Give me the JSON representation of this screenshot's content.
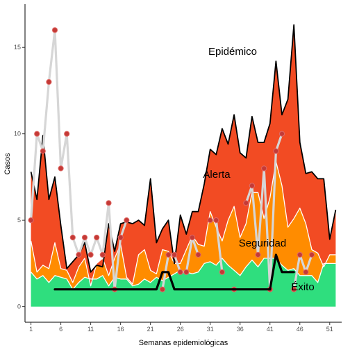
{
  "chart_data": {
    "type": "area",
    "title": "",
    "xlabel": "Semanas epidemiológicas",
    "ylabel": "Casos",
    "xlim": [
      0,
      53
    ],
    "ylim": [
      -0.9,
      17.5
    ],
    "x_ticks": [
      1,
      6,
      11,
      16,
      21,
      26,
      31,
      36,
      41,
      46,
      51
    ],
    "y_ticks": [
      0,
      5,
      10,
      15
    ],
    "grid": false,
    "legend": "none",
    "colors": {
      "exito": "#2fde7e",
      "seguridad": "#ff8c00",
      "alerta": "#f24b23",
      "epidemico": "#ffffff",
      "current_line": "#000000",
      "historic_line": "#d6d6d6",
      "historic_points": "#c43a36",
      "band_border": "#ffffff"
    },
    "weeks": [
      1,
      2,
      3,
      4,
      5,
      6,
      7,
      8,
      9,
      10,
      11,
      12,
      13,
      14,
      15,
      16,
      17,
      18,
      19,
      20,
      21,
      22,
      23,
      24,
      25,
      26,
      27,
      28,
      29,
      30,
      31,
      32,
      33,
      34,
      35,
      36,
      37,
      38,
      39,
      40,
      41,
      42,
      43,
      44,
      45,
      46,
      47,
      48,
      49,
      50,
      51,
      52
    ],
    "zones": [
      {
        "name": "Éxito",
        "upper": [
          2,
          1.6,
          1.8,
          1.4,
          1.8,
          1.7,
          1.6,
          1,
          1.4,
          1.7,
          1.6,
          1.6,
          1.8,
          1.2,
          1.7,
          1.6,
          1.6,
          1.2,
          1.3,
          1.6,
          1.4,
          1.7,
          1.5,
          1.7,
          1.9,
          2.1,
          2,
          1.9,
          2,
          2.5,
          2.6,
          2.4,
          2.8,
          2.4,
          2.1,
          1.8,
          2.3,
          2.7,
          2.3,
          2.8,
          2.8,
          2.8,
          2.4,
          2.1,
          2.2,
          1.8,
          1.8,
          1.8,
          1.4,
          2.5,
          2.5,
          2.5
        ]
      },
      {
        "name": "Seguridad",
        "upper": [
          3.8,
          2,
          2.4,
          2.2,
          3.7,
          2.2,
          2.1,
          1.4,
          2.3,
          2.8,
          1.2,
          2.5,
          2.8,
          1.8,
          2.8,
          3.6,
          1.7,
          1.3,
          3,
          3.3,
          2.1,
          1.9,
          3.3,
          3.2,
          2.5,
          2.5,
          3.3,
          4.1,
          3.6,
          3.5,
          5.5,
          4.6,
          3.8,
          5,
          5.8,
          4,
          4.8,
          6.6,
          6.6,
          5.1,
          6.3,
          8.4,
          7,
          4.6,
          5.1,
          5.7,
          4.8,
          3.3,
          3.1,
          2.3,
          3,
          3
        ]
      },
      {
        "name": "Alerta",
        "upper": [
          7.8,
          6.2,
          9.9,
          6.2,
          7.5,
          4.7,
          2.2,
          2.6,
          3,
          3.7,
          2,
          2.4,
          2.3,
          4.8,
          3.2,
          4.8,
          4.9,
          4.8,
          5,
          4.7,
          7.4,
          3.7,
          4.5,
          5,
          2.5,
          5.3,
          4.2,
          5.5,
          5.5,
          7.1,
          9.1,
          8.8,
          10.3,
          9.4,
          11.1,
          8.9,
          8.6,
          11,
          9.5,
          9.5,
          10.6,
          14.2,
          11.1,
          12,
          16.3,
          9.5,
          7.7,
          7.8,
          7.4,
          7.4,
          3.9,
          5.6
        ]
      }
    ],
    "series": [
      {
        "name": "current",
        "values": [
          null,
          null,
          null,
          null,
          1,
          1,
          1,
          1,
          1,
          1,
          1,
          1,
          1,
          1,
          1,
          1,
          1,
          1,
          1,
          1,
          1,
          1,
          2,
          2,
          1,
          1,
          1,
          1,
          1,
          1,
          1,
          1,
          1,
          1,
          1,
          1,
          1,
          1,
          1,
          1,
          1,
          3,
          2,
          2,
          2,
          null,
          null,
          null,
          null,
          null,
          null,
          null
        ]
      },
      {
        "name": "historic",
        "values": [
          5,
          10,
          9,
          13,
          16,
          8,
          10,
          4,
          3,
          4,
          3,
          4,
          3,
          6,
          1,
          4,
          5,
          null,
          null,
          null,
          null,
          null,
          1,
          3,
          3,
          2,
          2,
          4,
          3,
          null,
          5,
          5,
          2,
          null,
          1,
          null,
          6,
          7,
          3,
          8,
          1,
          9,
          10,
          null,
          1,
          3,
          2,
          3,
          null,
          null,
          null,
          null
        ]
      }
    ],
    "annotations": [
      "Epidémico",
      "Alerta",
      "Seguridad",
      "Éxito"
    ]
  }
}
